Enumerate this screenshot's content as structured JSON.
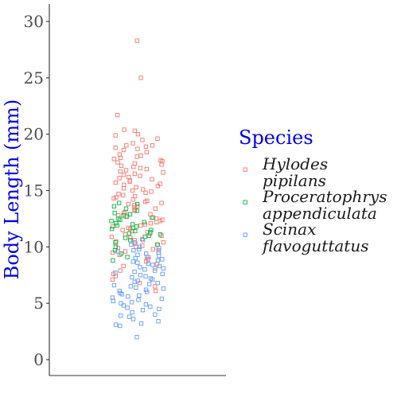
{
  "chart_data": {
    "type": "scatter",
    "plot_style": "jitter",
    "xlabel": "",
    "ylabel": "Body Length (mm)",
    "ylim": [
      -1.4,
      31.5
    ],
    "yticks": [
      0,
      5,
      10,
      15,
      20,
      25,
      30
    ],
    "grid": false,
    "marker": "open-square",
    "legend": {
      "title": "Species",
      "position": "right",
      "entries": [
        {
          "line1": "Hylodes",
          "line2": "pipilans",
          "color": "#f8766d"
        },
        {
          "line1": "Proceratophrys",
          "line2": "appendiculata",
          "color": "#00ba38"
        },
        {
          "line1": "Scinax",
          "line2": "flavoguttatus",
          "color": "#619cff"
        }
      ]
    },
    "series": [
      {
        "name": "Hylodes pipilans",
        "color": "#f8766d",
        "values": [
          28.3,
          25.0,
          21.7,
          20.4,
          20.3,
          20.0,
          19.9,
          19.6,
          19.5,
          19.2,
          19.0,
          19.0,
          18.9,
          18.8,
          18.7,
          18.6,
          18.4,
          18.2,
          18.1,
          18.0,
          17.9,
          17.8,
          17.7,
          17.6,
          17.5,
          17.4,
          17.3,
          17.2,
          17.1,
          17.0,
          16.9,
          16.8,
          16.7,
          16.6,
          16.5,
          16.4,
          16.3,
          16.2,
          16.1,
          16.0,
          15.9,
          15.8,
          15.7,
          15.6,
          15.5,
          15.4,
          15.3,
          15.2,
          15.1,
          15.0,
          14.9,
          14.8,
          14.7,
          14.6,
          14.5,
          14.4,
          14.3,
          14.2,
          14.1,
          14.0,
          13.9,
          13.8,
          13.7,
          13.6,
          13.5,
          13.4,
          13.3,
          13.2,
          13.1,
          13.0,
          12.9,
          12.8,
          12.7,
          12.6,
          12.5,
          12.4,
          12.3,
          12.2,
          12.1,
          12.0,
          11.9,
          11.8,
          11.7,
          11.6,
          11.5,
          11.4,
          11.3,
          11.2,
          11.1,
          11.0,
          10.9,
          10.8,
          10.7,
          10.6,
          10.5,
          10.4,
          10.3,
          10.2,
          10.1,
          10.0,
          9.9,
          9.8,
          9.7,
          9.6,
          9.5,
          9.3,
          9.1,
          8.9,
          8.7,
          8.5,
          8.3,
          8.1,
          7.9,
          7.6,
          7.4,
          7.1,
          6.8,
          6.5,
          6.1
        ]
      },
      {
        "name": "Proceratophrys appendiculata",
        "color": "#00ba38",
        "values": [
          13.9,
          13.8,
          13.6,
          13.4,
          13.2,
          13.0,
          12.9,
          12.8,
          12.7,
          12.6,
          12.5,
          12.4,
          12.3,
          12.2,
          12.1,
          12.0,
          11.9,
          11.8,
          11.7,
          11.6,
          11.5,
          11.4,
          11.3,
          11.2,
          11.1,
          11.0,
          10.9,
          10.8,
          10.6,
          10.4,
          10.2,
          10.0,
          9.7,
          9.4,
          9.1,
          8.8
        ]
      },
      {
        "name": "Scinax flavoguttatus",
        "color": "#619cff",
        "values": [
          10.6,
          10.4,
          10.2,
          10.0,
          9.9,
          9.8,
          9.7,
          9.6,
          9.5,
          9.4,
          9.3,
          9.2,
          9.1,
          9.0,
          8.9,
          8.8,
          8.7,
          8.6,
          8.5,
          8.4,
          8.3,
          8.2,
          8.1,
          8.0,
          7.9,
          7.8,
          7.7,
          7.6,
          7.5,
          7.4,
          7.3,
          7.2,
          7.1,
          7.0,
          6.9,
          6.8,
          6.7,
          6.6,
          6.5,
          6.4,
          6.3,
          6.2,
          6.1,
          6.0,
          5.9,
          5.8,
          5.7,
          5.6,
          5.5,
          5.4,
          5.3,
          5.2,
          5.1,
          5.0,
          4.9,
          4.8,
          4.7,
          4.6,
          4.5,
          4.4,
          4.2,
          4.0,
          3.9,
          3.8,
          3.6,
          3.4,
          3.2,
          3.1,
          3.0,
          2.0
        ]
      }
    ]
  }
}
